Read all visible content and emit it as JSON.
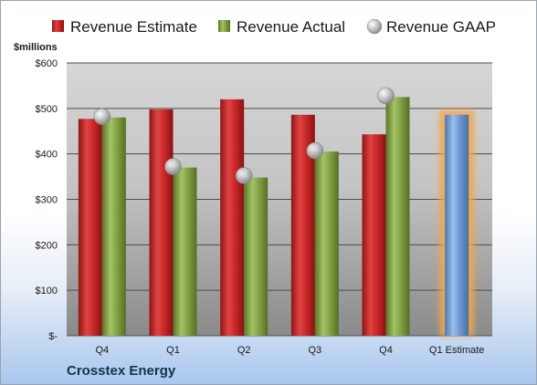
{
  "company": "Crosstex Energy",
  "chart_data": {
    "type": "bar",
    "ylabel": "$millions",
    "ylim": [
      0,
      600
    ],
    "yticks": [
      {
        "value": 0,
        "label": "$-"
      },
      {
        "value": 100,
        "label": "$100"
      },
      {
        "value": 200,
        "label": "$200"
      },
      {
        "value": 300,
        "label": "$300"
      },
      {
        "value": 400,
        "label": "$400"
      },
      {
        "value": 500,
        "label": "$500"
      },
      {
        "value": 600,
        "label": "$600"
      }
    ],
    "categories": [
      "Q4",
      "Q1",
      "Q2",
      "Q3",
      "Q4",
      "Q1 Estimate"
    ],
    "legend_position": "top",
    "series": [
      {
        "name": "Revenue Estimate",
        "type": "bar",
        "color": "#cc2a2a",
        "values": [
          477,
          498,
          520,
          486,
          443,
          null
        ]
      },
      {
        "name": "Revenue Actual",
        "type": "bar",
        "color": "#86a447",
        "values": [
          480,
          370,
          348,
          405,
          525,
          null
        ]
      },
      {
        "name": "Revenue GAAP",
        "type": "marker",
        "color": "#a9acb0",
        "values": [
          482,
          372,
          352,
          407,
          528,
          null
        ]
      }
    ],
    "forecast": {
      "category": "Q1 Estimate",
      "value": 486,
      "color": "#6f9bd6",
      "highlight_color": "#f5a64a"
    }
  }
}
